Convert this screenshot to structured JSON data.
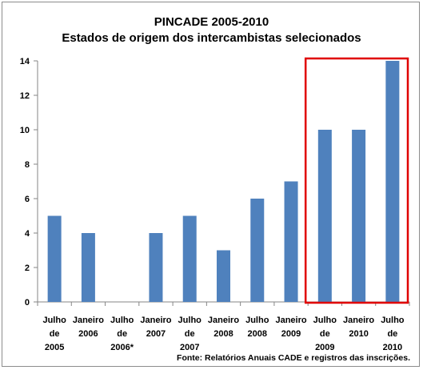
{
  "chart_data": {
    "type": "bar",
    "title": "PINCADE 2005-2010",
    "subtitle": "Estados de origem dos intercambistas selecionados",
    "categories": [
      [
        "Julho",
        "de",
        "2005"
      ],
      [
        "Janeiro",
        "2006"
      ],
      [
        "Julho",
        "de",
        "2006*"
      ],
      [
        "Janeiro",
        "2007"
      ],
      [
        "Julho",
        "de",
        "2007"
      ],
      [
        "Janeiro",
        "2008"
      ],
      [
        "Julho",
        "2008"
      ],
      [
        "Janeiro",
        "2009"
      ],
      [
        "Julho",
        "de",
        "2009"
      ],
      [
        "Janeiro",
        "2010"
      ],
      [
        "Julho",
        "de",
        "2010"
      ]
    ],
    "values": [
      5,
      4,
      0,
      4,
      5,
      3,
      6,
      7,
      10,
      10,
      14
    ],
    "ylim": [
      0,
      14
    ],
    "yticks": [
      0,
      2,
      4,
      6,
      8,
      10,
      12,
      14
    ],
    "bar_color": "#4f81bd",
    "highlight": {
      "from_index": 8,
      "to_index": 10,
      "color": "#e00000"
    },
    "source": "Fonte: Relatórios Anuais CADE e registros das inscrições."
  }
}
